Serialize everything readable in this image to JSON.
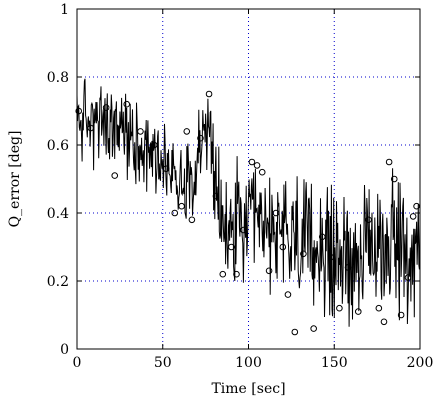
{
  "chart_data": {
    "type": "line",
    "xlabel": "Time [sec]",
    "ylabel": "Q_error [deg]",
    "xlim": [
      0,
      200
    ],
    "ylim": [
      0,
      1
    ],
    "grid": true,
    "x_ticks": [
      0,
      50,
      100,
      150,
      200
    ],
    "x_tick_labels": [
      "0",
      "50",
      "100",
      "150",
      "200"
    ],
    "y_ticks": [
      0,
      0.2,
      0.4,
      0.6,
      0.8,
      1
    ],
    "y_tick_labels": [
      "0",
      "0.2",
      "0.4",
      "0.6",
      "0.8",
      "1"
    ],
    "trend": [
      {
        "x": 0,
        "y": 0.68
      },
      {
        "x": 25,
        "y": 0.64
      },
      {
        "x": 40,
        "y": 0.6
      },
      {
        "x": 55,
        "y": 0.52
      },
      {
        "x": 65,
        "y": 0.5
      },
      {
        "x": 78,
        "y": 0.68
      },
      {
        "x": 80,
        "y": 0.45
      },
      {
        "x": 85,
        "y": 0.35
      },
      {
        "x": 100,
        "y": 0.36
      },
      {
        "x": 125,
        "y": 0.33
      },
      {
        "x": 150,
        "y": 0.27
      },
      {
        "x": 175,
        "y": 0.28
      },
      {
        "x": 185,
        "y": 0.35
      },
      {
        "x": 190,
        "y": 0.26
      },
      {
        "x": 200,
        "y": 0.28
      }
    ],
    "markers": [
      {
        "x": 1,
        "y": 0.7
      },
      {
        "x": 8,
        "y": 0.65
      },
      {
        "x": 17,
        "y": 0.71
      },
      {
        "x": 22,
        "y": 0.51
      },
      {
        "x": 29,
        "y": 0.72
      },
      {
        "x": 37,
        "y": 0.64
      },
      {
        "x": 45,
        "y": 0.6
      },
      {
        "x": 52,
        "y": 0.53
      },
      {
        "x": 57,
        "y": 0.4
      },
      {
        "x": 61,
        "y": 0.42
      },
      {
        "x": 64,
        "y": 0.64
      },
      {
        "x": 67,
        "y": 0.38
      },
      {
        "x": 72,
        "y": 0.62
      },
      {
        "x": 77,
        "y": 0.75
      },
      {
        "x": 81,
        "y": 0.45
      },
      {
        "x": 85,
        "y": 0.22
      },
      {
        "x": 90,
        "y": 0.3
      },
      {
        "x": 93,
        "y": 0.22
      },
      {
        "x": 97,
        "y": 0.35
      },
      {
        "x": 102,
        "y": 0.55
      },
      {
        "x": 105,
        "y": 0.54
      },
      {
        "x": 108,
        "y": 0.52
      },
      {
        "x": 112,
        "y": 0.23
      },
      {
        "x": 116,
        "y": 0.4
      },
      {
        "x": 120,
        "y": 0.3
      },
      {
        "x": 123,
        "y": 0.16
      },
      {
        "x": 127,
        "y": 0.05
      },
      {
        "x": 132,
        "y": 0.28
      },
      {
        "x": 138,
        "y": 0.06
      },
      {
        "x": 143,
        "y": 0.33
      },
      {
        "x": 148,
        "y": 0.27
      },
      {
        "x": 153,
        "y": 0.12
      },
      {
        "x": 158,
        "y": 0.24
      },
      {
        "x": 164,
        "y": 0.11
      },
      {
        "x": 170,
        "y": 0.38
      },
      {
        "x": 176,
        "y": 0.12
      },
      {
        "x": 179,
        "y": 0.08
      },
      {
        "x": 182,
        "y": 0.55
      },
      {
        "x": 185,
        "y": 0.5
      },
      {
        "x": 189,
        "y": 0.1
      },
      {
        "x": 193,
        "y": 0.21
      },
      {
        "x": 196,
        "y": 0.39
      },
      {
        "x": 198,
        "y": 0.42
      }
    ],
    "noise_amplitude_deg": 0.12,
    "noise_samples": 600
  }
}
